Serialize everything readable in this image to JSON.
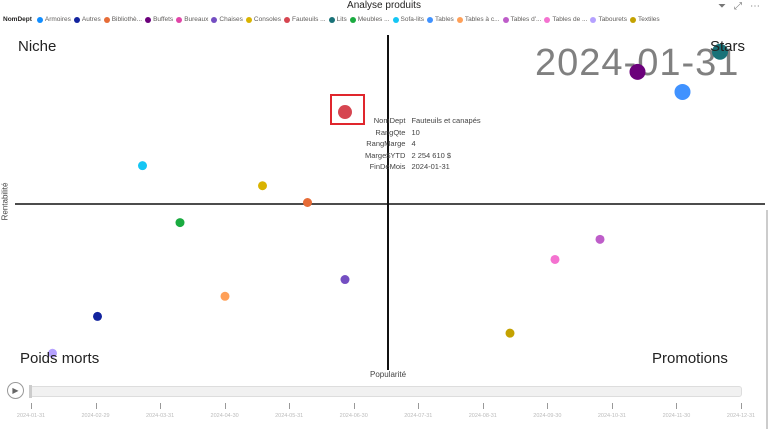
{
  "title": "Analyse produits",
  "toolbar": {
    "filter_icon": "filter-icon",
    "focus_icon": "focus-mode-icon",
    "more_icon": "more-options-icon"
  },
  "legend": {
    "label": "NomDept",
    "items": [
      {
        "label": "Armoires",
        "color": "#118DFF"
      },
      {
        "label": "Autres",
        "color": "#12239E"
      },
      {
        "label": "Bibliothè...",
        "color": "#E66C37"
      },
      {
        "label": "Buffets",
        "color": "#6B007B"
      },
      {
        "label": "Bureaux",
        "color": "#E044A7"
      },
      {
        "label": "Chaises",
        "color": "#744EC2"
      },
      {
        "label": "Consoles",
        "color": "#D9B300"
      },
      {
        "label": "Fauteuils ...",
        "color": "#D64550"
      },
      {
        "label": "Lits",
        "color": "#197278"
      },
      {
        "label": "Meubles ...",
        "color": "#1AAB40"
      },
      {
        "label": "Sofa-lits",
        "color": "#15C6F4"
      },
      {
        "label": "Tables",
        "color": "#4092FF"
      },
      {
        "label": "Tables à c...",
        "color": "#FFA058"
      },
      {
        "label": "Tables d'...",
        "color": "#BE5DC9"
      },
      {
        "label": "Tables de ...",
        "color": "#F472D0"
      },
      {
        "label": "Tabourets",
        "color": "#B5A1FF"
      },
      {
        "label": "Textiles",
        "color": "#C4A200"
      }
    ]
  },
  "quadrants": {
    "top_left": "Niche",
    "top_right": "Stars",
    "bottom_left": "Poids morts",
    "bottom_right": "Promotions"
  },
  "axes": {
    "x": "Popularité",
    "y": "Rentabilité"
  },
  "current_date": "2024-01-31",
  "chart_data": {
    "type": "scatter",
    "xlabel": "Popularité",
    "ylabel": "Rentabilité",
    "x_range_pct": [
      0,
      100
    ],
    "y_range_pct": [
      0,
      100
    ],
    "points": [
      {
        "dept": "Lits",
        "x": 94,
        "y": 95,
        "color": "#197278"
      },
      {
        "dept": "Buffets",
        "x": 83,
        "y": 89,
        "color": "#6B007B"
      },
      {
        "dept": "Tables",
        "x": 89,
        "y": 83,
        "color": "#4092FF"
      },
      {
        "dept": "Fauteuils et canapés",
        "x": 44,
        "y": 77,
        "color": "#D64550",
        "selected": true
      },
      {
        "dept": "Sofa-lits",
        "x": 17,
        "y": 61,
        "color": "#15C6F4"
      },
      {
        "dept": "Consoles",
        "x": 33,
        "y": 55,
        "color": "#D9B300"
      },
      {
        "dept": "Bibliothèques",
        "x": 39,
        "y": 50,
        "color": "#E66C37"
      },
      {
        "dept": "Meubles",
        "x": 22,
        "y": 44,
        "color": "#1AAB40"
      },
      {
        "dept": "Tables d'",
        "x": 78,
        "y": 39,
        "color": "#BE5DC9"
      },
      {
        "dept": "Tables de",
        "x": 72,
        "y": 33,
        "color": "#F472D0"
      },
      {
        "dept": "Chaises",
        "x": 44,
        "y": 27,
        "color": "#744EC2"
      },
      {
        "dept": "Tables à c",
        "x": 28,
        "y": 22,
        "color": "#FFA058"
      },
      {
        "dept": "Autres",
        "x": 11,
        "y": 16,
        "color": "#12239E"
      },
      {
        "dept": "Textiles",
        "x": 66,
        "y": 11,
        "color": "#C4A200"
      },
      {
        "dept": "Tabourets",
        "x": 5,
        "y": 5,
        "color": "#B5A1FF"
      }
    ]
  },
  "tooltip": [
    {
      "k": "NomDept",
      "v": "Fauteuils et canapés"
    },
    {
      "k": "RangQte",
      "v": "10"
    },
    {
      "k": "RangMarge",
      "v": "4"
    },
    {
      "k": "Marge$YTD",
      "v": "2 254 610 $"
    },
    {
      "k": "FinDeMois",
      "v": "2024-01-31"
    }
  ],
  "timeline": {
    "position_pct": 0,
    "labels": [
      "2024-01-31",
      "2024-02-29",
      "2024-03-31",
      "2024-04-30",
      "2024-05-31",
      "2024-06-30",
      "2024-07-31",
      "2024-08-31",
      "2024-09-30",
      "2024-10-31",
      "2024-11-30",
      "2024-12-31"
    ]
  }
}
